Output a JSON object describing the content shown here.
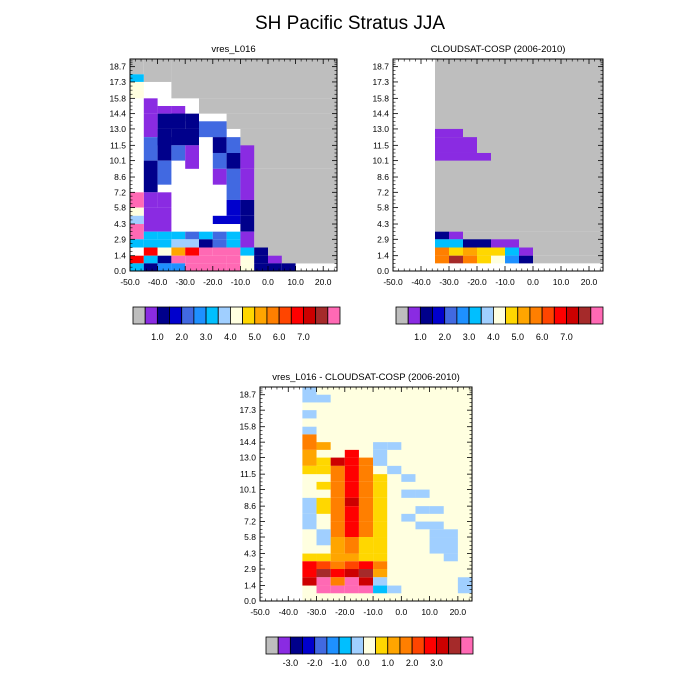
{
  "figure": {
    "title": "SH Pacific Stratus JJA"
  },
  "palettes": {
    "abs": [
      "#bebebe",
      "#8a2be2",
      "#00008b",
      "#0000cd",
      "#4169e1",
      "#1e90ff",
      "#00bfff",
      "#a0cfff",
      "#ffffe0",
      "#ffd700",
      "#ffa500",
      "#ff7f00",
      "#ff4500",
      "#ff0000",
      "#cd0000",
      "#a52a2a",
      "#ff69b4"
    ],
    "diff": [
      "#bebebe",
      "#8a2be2",
      "#00008b",
      "#0000cd",
      "#4169e1",
      "#1e90ff",
      "#00bfff",
      "#a0cfff",
      "#ffffe0",
      "#ffd700",
      "#ffa500",
      "#ff7f00",
      "#ff4500",
      "#ff0000",
      "#cd0000",
      "#a52a2a",
      "#ff69b4"
    ]
  },
  "chart_data": [
    {
      "type": "heatmap",
      "title": "vres_L016",
      "x_tick_labels": [
        "-50.0",
        "-40.0",
        "-30.0",
        "-20.0",
        "-10.0",
        "0.0",
        "10.0",
        "20.0"
      ],
      "x_ticks": [
        -50,
        -40,
        -30,
        -20,
        -10,
        0,
        10,
        20
      ],
      "xlim": [
        -50,
        25
      ],
      "y_tick_labels": [
        "0.0",
        "1.4",
        "2.9",
        "4.3",
        "5.8",
        "7.2",
        "8.6",
        "10.1",
        "11.5",
        "13.0",
        "14.4",
        "15.8",
        "17.3",
        "18.7"
      ],
      "y_levels": [
        0.0,
        1.4,
        2.9,
        4.3,
        5.8,
        7.2,
        8.6,
        10.1,
        11.5,
        13.0,
        14.4,
        15.8,
        17.3,
        18.7
      ],
      "y_ticks": [
        0.0,
        1.4,
        2.9,
        4.3,
        5.8,
        7.2,
        8.6,
        10.1,
        11.5,
        13.0,
        14.4,
        15.8,
        17.3,
        18.7
      ],
      "y_edges": [
        0,
        0.7,
        1.4,
        2.15,
        2.9,
        3.6,
        4.3,
        5.05,
        5.8,
        6.5,
        7.2,
        7.9,
        8.6,
        9.35,
        10.1,
        10.8,
        11.5,
        12.25,
        13.0,
        13.7,
        14.4,
        15.1,
        15.8,
        16.55,
        17.3,
        18.0,
        18.7,
        19.4
      ],
      "x_edges": [
        -50,
        -45,
        -40,
        -35,
        -30,
        -25,
        -20,
        -15,
        -10,
        -5,
        0,
        5,
        10,
        15,
        20,
        25
      ],
      "colorbar_labels": [
        "1.0",
        "2.0",
        "3.0",
        "4.0",
        "5.0",
        "6.0",
        "7.0"
      ],
      "colorbar_note": "17 bins: grey (missing) followed by 16 value bins",
      "cells": [
        "...............",
        ".....HH........",
        ".CCCCC.........",
        "DGMQQGG........",
        "QGHQQGAABB.....",
        "QPPQQQQBBAA....",
        "QACCBBBBAA.....",
        "QACCBBBCCA.....",
        "ACC.....BA.....",
        "ACC.....BA.....",
        "ACC....ABBA....",
        ".AA.....BBA....",
        ".CC.....BBA....",
        ".AA.....AA.....",
        "..CAAE.DDCA....",
        "..CAAE.ADDCA...",
        "..CCC..AEDEA...",
        "..CCCCCCCCA....",
        "..CCCCCC.......",
        "...CCC.........",
        "...............",
        "HH.............",
        "QH.............",
        "HH.............",
        "...............",
        "...............",
        "..............."
      ]
    },
    {
      "type": "heatmap",
      "title": "CLOUDSAT-COSP (2006-2010)",
      "x_tick_labels": [
        "-50.0",
        "-40.0",
        "-30.0",
        "-20.0",
        "-10.0",
        "0.0",
        "10.0",
        "20.0"
      ],
      "x_ticks": [
        -50,
        -40,
        -30,
        -20,
        -10,
        0,
        10,
        20
      ],
      "xlim": [
        -50,
        25
      ],
      "y_tick_labels": [
        "0.0",
        "1.4",
        "2.9",
        "4.3",
        "5.8",
        "7.2",
        "8.6",
        "10.1",
        "11.5",
        "13.0",
        "14.4",
        "15.8",
        "17.3",
        "18.7"
      ],
      "y_levels": [
        0.0,
        1.4,
        2.9,
        4.3,
        5.8,
        7.2,
        8.6,
        10.1,
        11.5,
        13.0,
        14.4,
        15.8,
        17.3,
        18.7
      ],
      "y_ticks": [
        0.0,
        1.4,
        2.9,
        4.3,
        5.8,
        7.2,
        8.6,
        10.1,
        11.5,
        13.0,
        14.4,
        15.8,
        17.3,
        18.7
      ],
      "y_edges": [
        0,
        0.7,
        1.4,
        2.15,
        2.9,
        3.6,
        4.3,
        5.05,
        5.8,
        6.5,
        7.2,
        7.9,
        8.6,
        9.35,
        10.1,
        10.8,
        11.5,
        12.25,
        13.0,
        13.7,
        14.4,
        15.1,
        15.8,
        16.55,
        17.3,
        18.0,
        18.7,
        19.4
      ],
      "x_edges": [
        -50,
        -45,
        -40,
        -35,
        -30,
        -25,
        -20,
        -15,
        -10,
        -5,
        0,
        5,
        10,
        15,
        20,
        25
      ],
      "colorbar_labels": [
        "1.0",
        "2.0",
        "3.0",
        "4.0",
        "5.0",
        "6.0",
        "7.0"
      ],
      "cells": [
        "...............",
        "...............",
        "...............",
        "...............",
        "...............",
        "...............",
        "...............",
        "...............",
        "...............",
        "...............",
        "...............",
        "...............",
        "...............",
        "...............",
        "...............",
        "...............",
        "...............",
        "...............",
        "...............",
        "...............",
        "...............",
        "...............",
        "...............",
        "...............",
        "...............",
        "...............",
        "..............."
      ]
    },
    {
      "type": "heatmap",
      "title": "vres_L016 - CLOUDSAT-COSP (2006-2010)",
      "x_tick_labels": [
        "-50.0",
        "-40.0",
        "-30.0",
        "-20.0",
        "-10.0",
        "0.0",
        "10.0",
        "20.0"
      ],
      "x_ticks": [
        -50,
        -40,
        -30,
        -20,
        -10,
        0,
        10,
        20
      ],
      "xlim": [
        -50,
        25
      ],
      "y_tick_labels": [
        "0.0",
        "1.4",
        "2.9",
        "4.3",
        "5.8",
        "7.2",
        "8.6",
        "10.1",
        "11.5",
        "13.0",
        "14.4",
        "15.8",
        "17.3",
        "18.7"
      ],
      "y_levels": [
        0.0,
        1.4,
        2.9,
        4.3,
        5.8,
        7.2,
        8.6,
        10.1,
        11.5,
        13.0,
        14.4,
        15.8,
        17.3,
        18.7
      ],
      "y_ticks": [
        0.0,
        1.4,
        2.9,
        4.3,
        5.8,
        7.2,
        8.6,
        10.1,
        11.5,
        13.0,
        14.4,
        15.8,
        17.3,
        18.7
      ],
      "y_edges": [
        0,
        0.7,
        1.4,
        2.15,
        2.9,
        3.6,
        4.3,
        5.05,
        5.8,
        6.5,
        7.2,
        7.9,
        8.6,
        9.35,
        10.1,
        10.8,
        11.5,
        12.25,
        13.0,
        13.7,
        14.4,
        15.1,
        15.8,
        16.55,
        17.3,
        18.0,
        18.7,
        19.4
      ],
      "x_edges": [
        -50,
        -45,
        -40,
        -35,
        -30,
        -25,
        -20,
        -15,
        -10,
        -5,
        0,
        5,
        10,
        15,
        20,
        25
      ],
      "colorbar_labels": [
        "-3.0",
        "-2.0",
        "-1.0",
        "0.0",
        "1.0",
        "2.0",
        "3.0"
      ],
      "cells": [
        "...............",
        "...............",
        "...............",
        "...............",
        "...............",
        "...............",
        "...............",
        "...............",
        "...............",
        "...............",
        "...............",
        "...............",
        "...............",
        "...............",
        "...............",
        "...............",
        "...............",
        "...............",
        "...............",
        "...............",
        "...............",
        "...............",
        "...............",
        "...............",
        "...............",
        "...............",
        "..............."
      ]
    }
  ]
}
